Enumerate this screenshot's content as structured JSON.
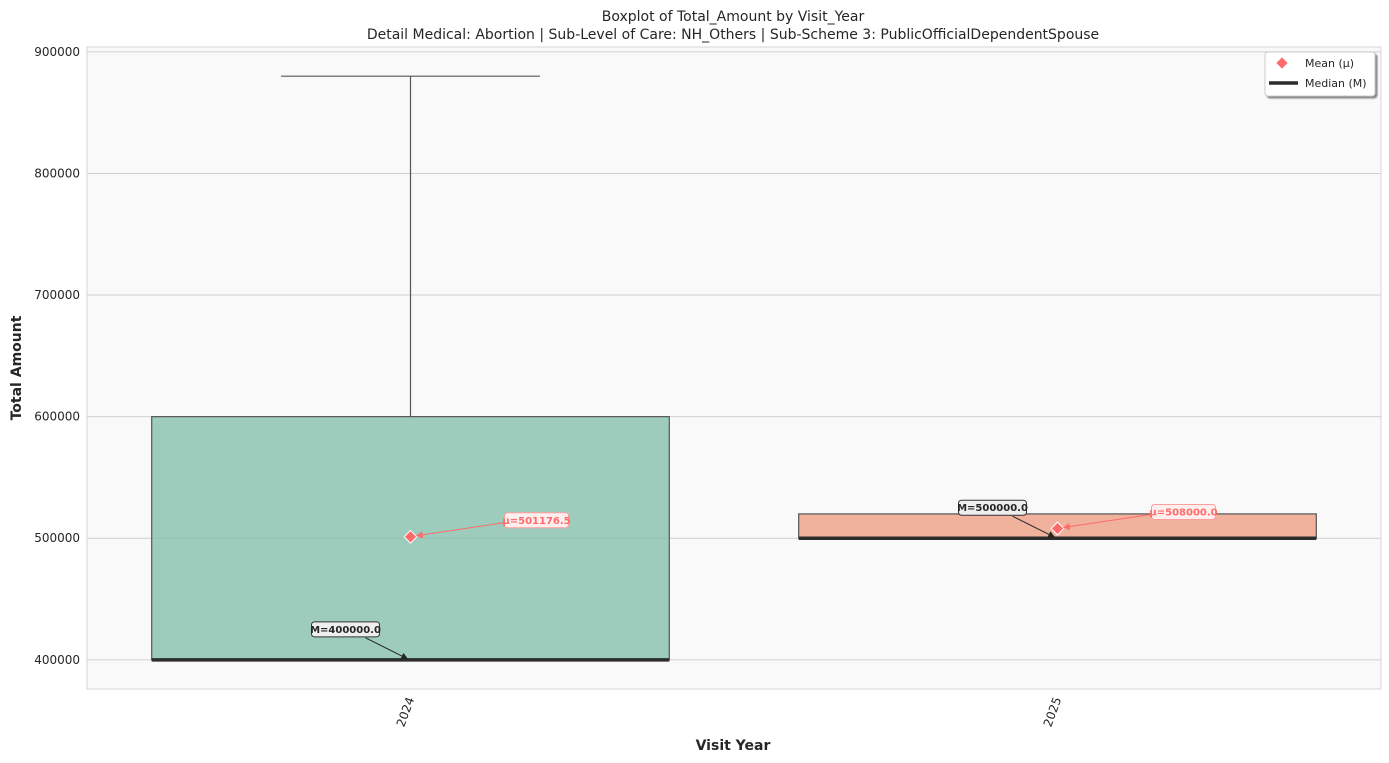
{
  "chart_data": {
    "type": "boxplot",
    "title": "Boxplot of Total_Amount by Visit_Year",
    "subtitle": "Detail Medical: Abortion | Sub-Level of Care: NH_Others | Sub-Scheme 3: PublicOfficialDependentSpouse",
    "xlabel": "Visit Year",
    "ylabel": "Total Amount",
    "ylim": [
      376000,
      904000
    ],
    "yticks": [
      400000,
      500000,
      600000,
      700000,
      800000,
      900000
    ],
    "ytick_labels": [
      "400000",
      "500000",
      "600000",
      "700000",
      "800000",
      "900000"
    ],
    "grid": true,
    "legend": {
      "position": "top-right",
      "entries": [
        {
          "label": "Mean (μ)",
          "marker": "diamond",
          "color": "#ff6b6b"
        },
        {
          "label": "Median (M)",
          "marker": "line",
          "color": "#2d2d2d"
        }
      ]
    },
    "categories": [
      "2024",
      "2025"
    ],
    "boxes": [
      {
        "category": "2024",
        "color": "#8dc3b2",
        "whisker_low": 400000,
        "q1": 400000,
        "median": 400000,
        "q3": 600000,
        "whisker_high": 880000,
        "mean": 501176.5,
        "median_label": "M=400000.0",
        "mean_label": "μ=501176.5"
      },
      {
        "category": "2025",
        "color": "#eea68c",
        "whisker_low": 500000,
        "q1": 500000,
        "median": 500000,
        "q3": 520000,
        "whisker_high": 520000,
        "mean": 508000.0,
        "median_label": "M=500000.0",
        "mean_label": "μ=508000.0"
      }
    ],
    "colors": {
      "mean_marker": "#ff6b6b",
      "median_line": "#2d2d2d",
      "plot_background": "#f9f9f9",
      "grid": "#d0d0d0"
    }
  }
}
